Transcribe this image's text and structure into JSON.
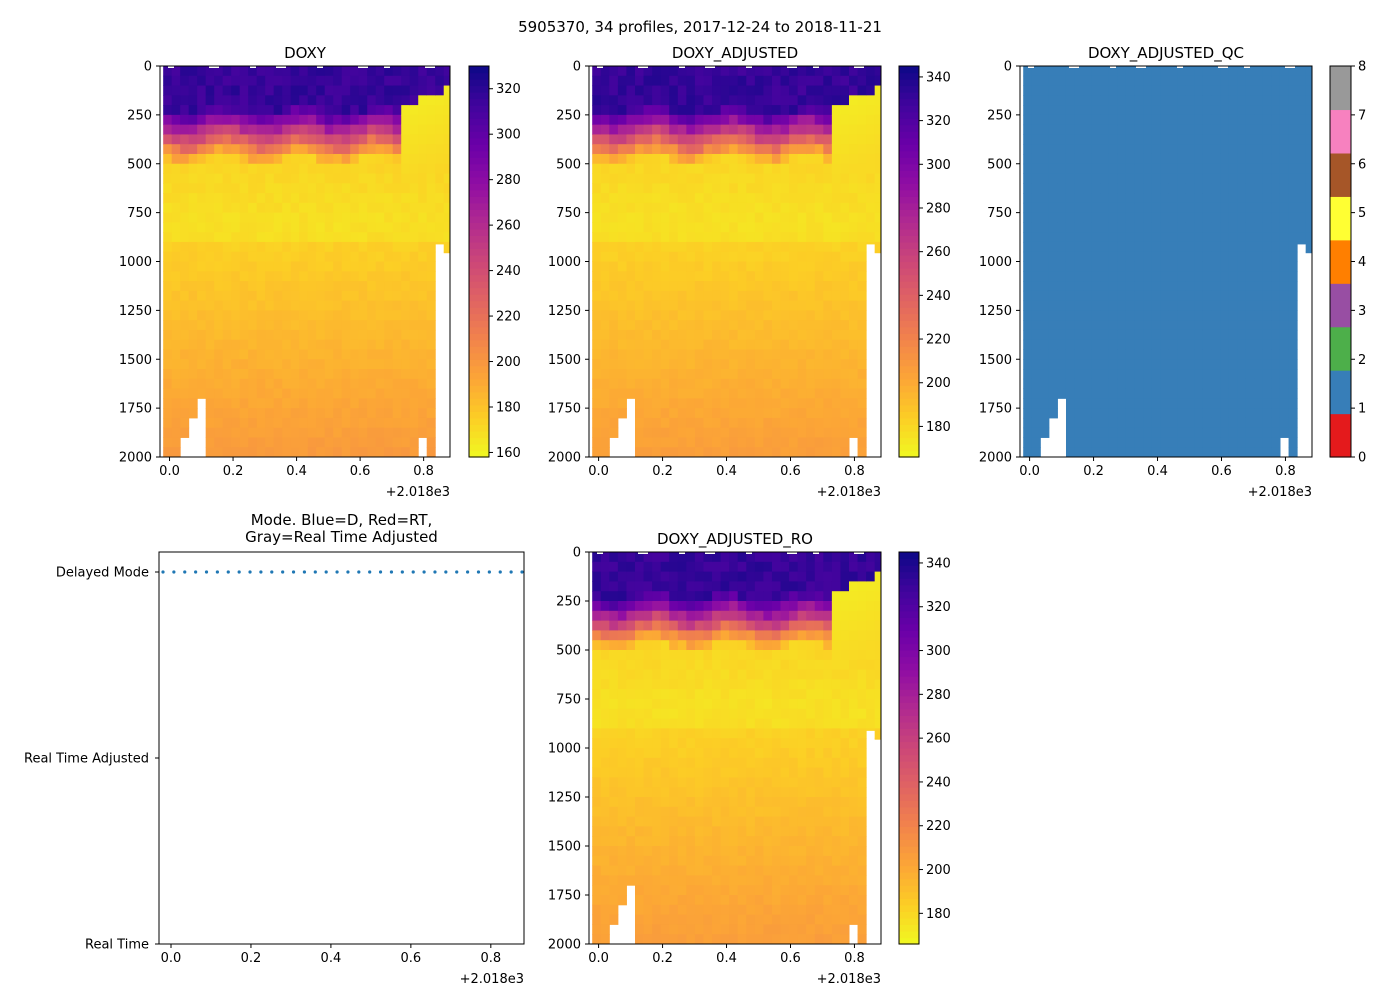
{
  "figure": {
    "suptitle": "5905370, 34 profiles, 2017-12-24 to 2018-11-21",
    "profile_count": 34,
    "date_start": "2017-12-24",
    "date_end": "2018-11-21"
  },
  "chart_data": [
    {
      "id": "doxy",
      "type": "heatmap",
      "title": "DOXY",
      "xlabel": "",
      "ylabel": "",
      "x_offset_label": "+2.018e3",
      "xlim": [
        -0.03,
        0.883
      ],
      "x_ticks": [
        0.0,
        0.2,
        0.4,
        0.6,
        0.8
      ],
      "x_tick_labels": [
        "0.0",
        "0.2",
        "0.4",
        "0.6",
        "0.8"
      ],
      "ylim": [
        2000,
        0
      ],
      "y_ticks": [
        0,
        250,
        500,
        750,
        1000,
        1250,
        1500,
        1750,
        2000
      ],
      "y_tick_labels": [
        "0",
        "250",
        "500",
        "750",
        "1000",
        "1250",
        "1500",
        "1750",
        "2000"
      ],
      "colormap": "plasma_r",
      "colorbar": {
        "range": [
          158,
          330
        ],
        "ticks": [
          160,
          180,
          200,
          220,
          240,
          260,
          280,
          300,
          320
        ],
        "tick_labels": [
          "160",
          "180",
          "200",
          "220",
          "240",
          "260",
          "280",
          "300",
          "320"
        ]
      },
      "profiles": 34
    },
    {
      "id": "doxy-adjusted",
      "type": "heatmap",
      "title": "DOXY_ADJUSTED",
      "xlabel": "",
      "ylabel": "",
      "x_offset_label": "+2.018e3",
      "xlim": [
        -0.03,
        0.883
      ],
      "x_ticks": [
        0.0,
        0.2,
        0.4,
        0.6,
        0.8
      ],
      "x_tick_labels": [
        "0.0",
        "0.2",
        "0.4",
        "0.6",
        "0.8"
      ],
      "ylim": [
        2000,
        0
      ],
      "y_ticks": [
        0,
        250,
        500,
        750,
        1000,
        1250,
        1500,
        1750,
        2000
      ],
      "y_tick_labels": [
        "0",
        "250",
        "500",
        "750",
        "1000",
        "1250",
        "1500",
        "1750",
        "2000"
      ],
      "colormap": "plasma_r",
      "colorbar": {
        "range": [
          166,
          345
        ],
        "ticks": [
          180,
          200,
          220,
          240,
          260,
          280,
          300,
          320,
          340
        ],
        "tick_labels": [
          "180",
          "200",
          "220",
          "240",
          "260",
          "280",
          "300",
          "320",
          "340"
        ]
      },
      "profiles": 34
    },
    {
      "id": "doxy-adjusted-qc",
      "type": "heatmap",
      "title": "DOXY_ADJUSTED_QC",
      "xlabel": "",
      "ylabel": "",
      "x_offset_label": "+2.018e3",
      "xlim": [
        -0.03,
        0.883
      ],
      "x_ticks": [
        0.0,
        0.2,
        0.4,
        0.6,
        0.8
      ],
      "x_tick_labels": [
        "0.0",
        "0.2",
        "0.4",
        "0.6",
        "0.8"
      ],
      "ylim": [
        2000,
        0
      ],
      "y_ticks": [
        0,
        250,
        500,
        750,
        1000,
        1250,
        1500,
        1750,
        2000
      ],
      "y_tick_labels": [
        "0",
        "250",
        "500",
        "750",
        "1000",
        "1250",
        "1500",
        "1750",
        "2000"
      ],
      "value_all_profiles": 1,
      "qc_colors": [
        "#e41a1c",
        "#377eb8",
        "#4daf4a",
        "#984ea3",
        "#ff7f00",
        "#ffff33",
        "#a65628",
        "#f781bf",
        "#999999"
      ],
      "colorbar": {
        "range": [
          0,
          8
        ],
        "ticks": [
          0,
          1,
          2,
          3,
          4,
          5,
          6,
          7,
          8
        ],
        "tick_labels": [
          "0",
          "1",
          "2",
          "3",
          "4",
          "5",
          "6",
          "7",
          "8"
        ]
      },
      "profiles": 34
    },
    {
      "id": "mode",
      "type": "scatter",
      "title_line1": "Mode. Blue=D, Red=RT,",
      "title_line2": "Gray=Real Time Adjusted",
      "xlabel": "",
      "ylabel": "",
      "x_offset_label": "+2.018e3",
      "xlim": [
        -0.03,
        0.883
      ],
      "x_ticks": [
        0.0,
        0.2,
        0.4,
        0.6,
        0.8
      ],
      "x_tick_labels": [
        "0.0",
        "0.2",
        "0.4",
        "0.6",
        "0.8"
      ],
      "y_categories": [
        "Real Time",
        "Real Time Adjusted",
        "Delayed Mode"
      ],
      "series": [
        {
          "name": "Delayed Mode",
          "category": "Delayed Mode",
          "color": "#1f77b4",
          "point_count": 34
        }
      ]
    },
    {
      "id": "doxy-adjusted-ro",
      "type": "heatmap",
      "title": "DOXY_ADJUSTED_RO",
      "xlabel": "",
      "ylabel": "",
      "x_offset_label": "+2.018e3",
      "xlim": [
        -0.03,
        0.883
      ],
      "x_ticks": [
        0.0,
        0.2,
        0.4,
        0.6,
        0.8
      ],
      "x_tick_labels": [
        "0.0",
        "0.2",
        "0.4",
        "0.6",
        "0.8"
      ],
      "ylim": [
        2000,
        0
      ],
      "y_ticks": [
        0,
        250,
        500,
        750,
        1000,
        1250,
        1500,
        1750,
        2000
      ],
      "y_tick_labels": [
        "0",
        "250",
        "500",
        "750",
        "1000",
        "1250",
        "1500",
        "1750",
        "2000"
      ],
      "colormap": "plasma_r",
      "colorbar": {
        "range": [
          166,
          345
        ],
        "ticks": [
          180,
          200,
          220,
          240,
          260,
          280,
          300,
          320,
          340
        ],
        "tick_labels": [
          "180",
          "200",
          "220",
          "240",
          "260",
          "280",
          "300",
          "320",
          "340"
        ]
      },
      "profiles": 34
    }
  ]
}
